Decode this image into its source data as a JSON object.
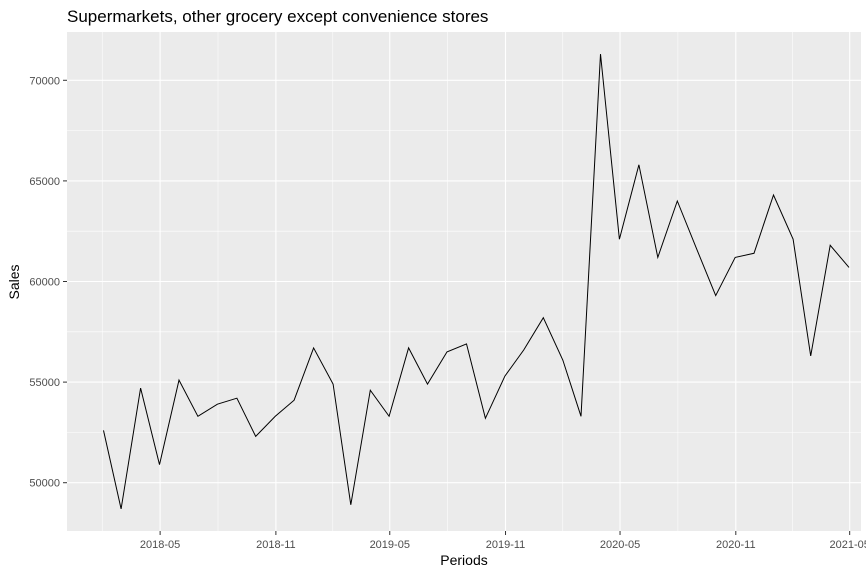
{
  "chart_data": {
    "type": "line",
    "title": "Supermarkets, other grocery except convenience stores",
    "xlabel": "Periods",
    "ylabel": "Sales",
    "x_ticks": [
      "2018-05",
      "2018-11",
      "2019-05",
      "2019-11",
      "2020-05",
      "2020-11",
      "2021-05"
    ],
    "y_ticks": [
      50000,
      55000,
      60000,
      65000,
      70000
    ],
    "ylim": [
      47600,
      72400
    ],
    "xlim": [
      "2017-12-04",
      "2021-05-19"
    ],
    "grid": true,
    "panel_background": "#ebebeb",
    "gridline_color": "#ffffff",
    "line_color": "#000000",
    "series": [
      {
        "x": [
          "2018-01-31",
          "2018-02-28",
          "2018-03-31",
          "2018-04-30",
          "2018-05-31",
          "2018-06-30",
          "2018-07-31",
          "2018-08-31",
          "2018-09-30",
          "2018-10-31",
          "2018-11-30",
          "2018-12-31",
          "2019-01-31",
          "2019-02-28",
          "2019-03-31",
          "2019-04-30",
          "2019-05-31",
          "2019-06-30",
          "2019-07-31",
          "2019-08-31",
          "2019-09-30",
          "2019-10-31",
          "2019-11-30",
          "2019-12-31",
          "2020-01-31",
          "2020-02-29",
          "2020-03-31",
          "2020-04-30",
          "2020-05-31",
          "2020-06-30",
          "2020-07-31",
          "2020-08-31",
          "2020-09-30",
          "2020-10-31",
          "2020-11-30",
          "2020-12-31",
          "2021-01-31",
          "2021-02-28",
          "2021-03-31",
          "2021-04-30"
        ],
        "values": [
          52600,
          48700,
          54700,
          50900,
          55100,
          53300,
          53900,
          54200,
          52300,
          53300,
          54100,
          56700,
          54900,
          48900,
          54600,
          53300,
          56700,
          54900,
          56500,
          56900,
          53200,
          55300,
          56600,
          58200,
          56100,
          53300,
          71300,
          62100,
          65800,
          61200,
          64000,
          61600,
          59300,
          61200,
          61400,
          64300,
          62100,
          56300,
          61800,
          60700
        ]
      }
    ]
  }
}
